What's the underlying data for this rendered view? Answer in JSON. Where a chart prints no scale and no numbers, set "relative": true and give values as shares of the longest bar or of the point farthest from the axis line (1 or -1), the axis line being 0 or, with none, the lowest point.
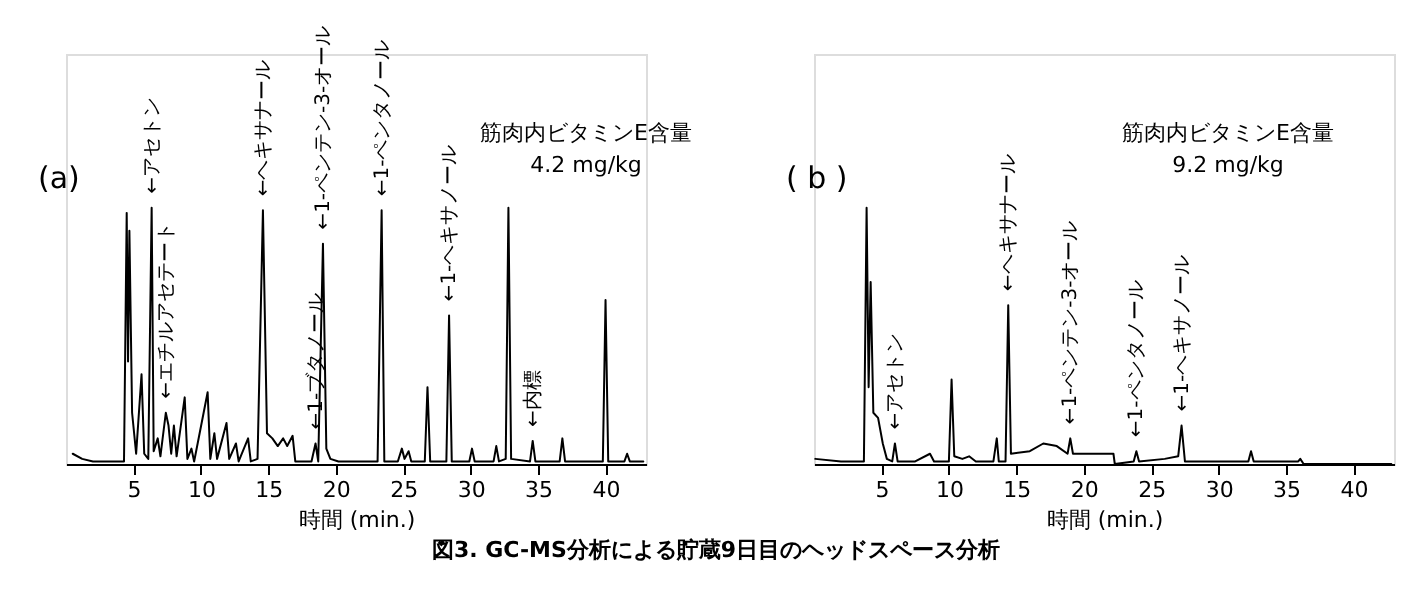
{
  "chart_data": [
    {
      "type": "line",
      "relative": true,
      "xlabel": "時間 (min.)",
      "xlim": [
        0,
        43
      ],
      "xticks": [
        5,
        10,
        15,
        20,
        25,
        30,
        35,
        40
      ],
      "series": [
        {
          "color": "#000000",
          "x": [
            0.5,
            1.2,
            2,
            4.3,
            4.5,
            4.6,
            4.7,
            4.9,
            5.2,
            5.6,
            5.8,
            6.1,
            6.35,
            6.5,
            6.8,
            7.0,
            7.4,
            7.6,
            7.8,
            8.0,
            8.2,
            8.8,
            9.0,
            9.3,
            9.5,
            10.5,
            10.7,
            11.0,
            11.2,
            11.9,
            12.1,
            12.6,
            12.8,
            13.5,
            13.7,
            14.2,
            14.6,
            14.9,
            15.3,
            15.7,
            16.1,
            16.4,
            16.8,
            17.0,
            18.2,
            18.5,
            18.7,
            19.05,
            19.3,
            19.6,
            20.2,
            23.1,
            23.4,
            23.6,
            24.6,
            24.9,
            25.1,
            25.4,
            25.6,
            26.6,
            26.8,
            27.0,
            28.2,
            28.4,
            28.6,
            29.9,
            30.1,
            30.3,
            31.7,
            31.9,
            32.1,
            32.6,
            32.8,
            33.0,
            34.4,
            34.6,
            34.8,
            36.6,
            36.8,
            37.0,
            39.8,
            40.0,
            40.2,
            41.4,
            41.6,
            41.8,
            42.8
          ],
          "values": [
            0.04,
            0.02,
            0.01,
            0.01,
            0.98,
            0.4,
            0.91,
            0.2,
            0.04,
            0.35,
            0.04,
            0.02,
            1.0,
            0.05,
            0.1,
            0.03,
            0.2,
            0.15,
            0.04,
            0.15,
            0.03,
            0.26,
            0.02,
            0.06,
            0.01,
            0.28,
            0.02,
            0.12,
            0.02,
            0.16,
            0.02,
            0.08,
            0.01,
            0.1,
            0.01,
            0.02,
            0.99,
            0.12,
            0.1,
            0.07,
            0.1,
            0.07,
            0.11,
            0.01,
            0.01,
            0.08,
            0.01,
            0.86,
            0.06,
            0.02,
            0.01,
            0.01,
            0.99,
            0.01,
            0.01,
            0.06,
            0.02,
            0.05,
            0.01,
            0.01,
            0.3,
            0.01,
            0.01,
            0.58,
            0.01,
            0.01,
            0.06,
            0.01,
            0.01,
            0.07,
            0.01,
            0.02,
            1.0,
            0.02,
            0.01,
            0.09,
            0.01,
            0.01,
            0.1,
            0.01,
            0.01,
            0.64,
            0.01,
            0.01,
            0.04,
            0.01,
            0.01
          ]
        }
      ],
      "annotations": [
        "(a)",
        "筋肉内ビタミンE含量",
        "4.2 mg/kg",
        {
          "text": "←アセトン",
          "x": 6.35,
          "y": 1.0
        },
        {
          "text": "←エチルアセテート",
          "x": 7.4,
          "y": 0.2
        },
        {
          "text": "←ヘキサナール",
          "x": 14.6,
          "y": 0.99
        },
        {
          "text": "←1-ブタノール",
          "x": 18.5,
          "y": 0.08
        },
        {
          "text": "←1-ペンテン-3-オール",
          "x": 19.05,
          "y": 0.86
        },
        {
          "text": "←1-ペンタノール",
          "x": 23.4,
          "y": 0.99
        },
        {
          "text": "←1-ヘキサノール",
          "x": 28.4,
          "y": 0.58
        },
        {
          "text": "←内標",
          "x": 34.6,
          "y": 0.09
        }
      ]
    },
    {
      "type": "line",
      "relative": true,
      "xlabel": "時間 (min.)",
      "xlim": [
        0,
        43
      ],
      "xticks": [
        5,
        10,
        15,
        20,
        25,
        30,
        35,
        40
      ],
      "series": [
        {
          "color": "#000000",
          "x": [
            0.1,
            2,
            3.7,
            3.9,
            4.05,
            4.2,
            4.4,
            4.75,
            5.1,
            5.4,
            5.8,
            6.0,
            6.2,
            7.5,
            8.6,
            8.9,
            10.0,
            10.2,
            10.4,
            11.0,
            11.5,
            12.0,
            13.3,
            13.55,
            13.7,
            14.2,
            14.4,
            14.6,
            16,
            17,
            18,
            18.8,
            19.0,
            19.2,
            20.0,
            22.2,
            22.3,
            23.7,
            23.9,
            24.1,
            26,
            27.0,
            27.25,
            27.5,
            32.2,
            32.4,
            32.6,
            35.9,
            36.05,
            36.3,
            42.8
          ],
          "values": [
            0.02,
            0.01,
            0.01,
            1.0,
            0.3,
            0.71,
            0.2,
            0.18,
            0.08,
            0.02,
            0.01,
            0.08,
            0.01,
            0.01,
            0.04,
            0.01,
            0.01,
            0.33,
            0.03,
            0.02,
            0.03,
            0.01,
            0.01,
            0.1,
            0.01,
            0.01,
            0.62,
            0.04,
            0.05,
            0.08,
            0.07,
            0.04,
            0.1,
            0.04,
            0.04,
            0.04,
            0.0,
            0.01,
            0.05,
            0.01,
            0.02,
            0.03,
            0.15,
            0.01,
            0.01,
            0.05,
            0.01,
            0.01,
            0.02,
            0.0,
            0.0
          ]
        }
      ],
      "annotations": [
        "( b )",
        "筋肉内ビタミンE含量",
        "9.2 mg/kg",
        "図3. GC-MS分析による貯蔵9日目のヘッドスペース分析",
        {
          "text": "←アセトン",
          "x": 6.0,
          "y": 0.08
        },
        {
          "text": "←ヘキサナール",
          "x": 14.4,
          "y": 0.62
        },
        {
          "text": "←1-ペンテン-3-オール",
          "x": 19.0,
          "y": 0.1
        },
        {
          "text": "←1-ペンタノール",
          "x": 23.9,
          "y": 0.05
        },
        {
          "text": "←1-ヘキサノール",
          "x": 27.25,
          "y": 0.15
        }
      ]
    }
  ]
}
